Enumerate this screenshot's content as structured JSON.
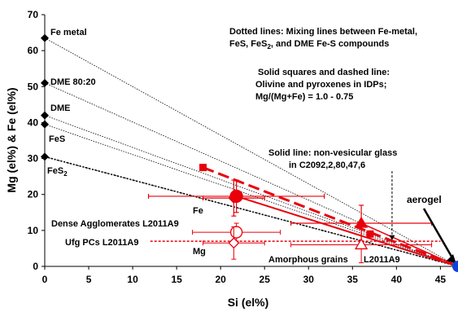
{
  "chart_data": {
    "type": "scatter",
    "xlabel": "Si (el%)",
    "ylabel": "Mg (el%) & Fe (el%)",
    "xlim": [
      0,
      47
    ],
    "ylim": [
      0,
      70
    ],
    "x_ticks": [
      "0",
      "5",
      "10",
      "15",
      "20",
      "25",
      "30",
      "35",
      "40",
      "45"
    ],
    "y_ticks": [
      "0",
      "10",
      "20",
      "30",
      "40",
      "50",
      "60",
      "70"
    ],
    "grid": false,
    "legend": "none",
    "end_point": {
      "x": 47,
      "y": 0
    },
    "compounds": [
      {
        "name": "Fe metal",
        "x": 0,
        "y": 63.5
      },
      {
        "name": "DME 80:20",
        "x": 0,
        "y": 51
      },
      {
        "name": "DME",
        "x": 0,
        "y": 42
      },
      {
        "name": "FeS",
        "x": 0,
        "y": 39.5
      },
      {
        "name": "FeS2",
        "x": 0,
        "y": 30.5
      }
    ],
    "ids_points": [
      {
        "x": 18,
        "y": 27.5
      },
      {
        "x": 37,
        "y": 9
      }
    ],
    "points": [
      {
        "name": "Fe",
        "series": "Dense Agglomerates L2011A9",
        "x": 21.8,
        "y": 19.5,
        "xerr": 10,
        "yerr": 4.5,
        "marker": "circle",
        "filled": true
      },
      {
        "name": "Mg",
        "series": "Dense Agglomerates L2011A9",
        "x": 21.8,
        "y": 9.5,
        "xerr": 5,
        "yerr": 2.5,
        "marker": "circle",
        "filled": false
      },
      {
        "name": "Fe",
        "series": "Ufg PCs L2011A9",
        "x": 21.5,
        "y": 19,
        "xerr": 3.5,
        "yerr": 5,
        "marker": "diamond",
        "filled": true
      },
      {
        "name": "Mg",
        "series": "Ufg PCs L2011A9",
        "x": 21.5,
        "y": 6.5,
        "xerr": 3.5,
        "yerr": 4.5,
        "marker": "diamond",
        "filled": false
      },
      {
        "name": "Fe",
        "series": "Amorphous grains L2011A9",
        "x": 36,
        "y": 12,
        "xerr": 8,
        "yerr": 5,
        "marker": "triangle",
        "filled": true
      },
      {
        "name": "Mg",
        "series": "Amorphous grains L2011A9",
        "x": 36,
        "y": 6,
        "xerr": 8,
        "yerr": 5,
        "marker": "triangle",
        "filled": false
      }
    ],
    "annotations": {
      "dotted": "Dotted lines: Mixing lines between Fe-metal,",
      "dotted2_pre": "FeS, FeS",
      "dotted2_sub": "2",
      "dotted2_post": ", and DME Fe-S compounds",
      "solid_sq1": "Solid squares and dashed line:",
      "solid_sq2": "Olivine and pyroxenes in IDPs;",
      "solid_sq3": "Mg/(Mg+Fe) = 1.0 - 0.75",
      "glass1": "Solid line: non-vesicular glass",
      "glass2": "in C2092,2,80,47,6",
      "aerogel": "aerogel",
      "fe_label": "Fe",
      "mg_label": "Mg",
      "dense": "Dense Agglomerates L2011A9",
      "ufg": "Ufg PCs L2011A9",
      "amorph": "Amorphous grains",
      "amorph_id": "L2011A9",
      "fe_metal": "Fe metal",
      "dme8020": "DME 80:20",
      "dme": "DME",
      "fes": "FeS",
      "fes2_base": "FeS",
      "fes2_sub": "2"
    },
    "colors": {
      "red": "#e8000b",
      "black": "#000000",
      "blue": "#1040e0"
    }
  }
}
